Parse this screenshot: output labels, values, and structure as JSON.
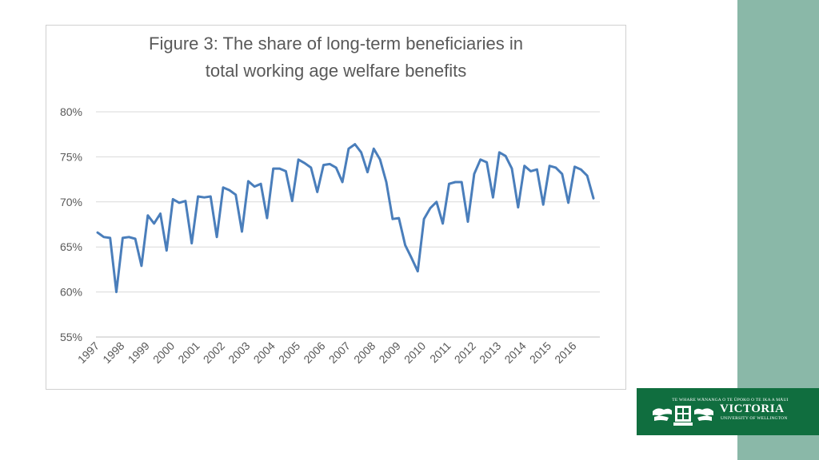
{
  "chart_data": {
    "type": "line",
    "title_lines": [
      "Figure 3: The share of long-term beneficiaries in",
      "total working age welfare benefits"
    ],
    "xlabel": "",
    "ylabel": "",
    "ylim": [
      55,
      80
    ],
    "yticks": [
      55,
      60,
      65,
      70,
      75,
      80
    ],
    "ytick_labels": [
      "55%",
      "60%",
      "65%",
      "70%",
      "75%",
      "80%"
    ],
    "xticks": [
      "1997",
      "1998",
      "1999",
      "2000",
      "2001",
      "2002",
      "2003",
      "2004",
      "2005",
      "2006",
      "2007",
      "2008",
      "2009",
      "2010",
      "2011",
      "2012",
      "2013",
      "2014",
      "2015",
      "2016"
    ],
    "x_unit": "quarter",
    "grid": true,
    "legend": "none",
    "series": [
      {
        "color": "#4a7ebb",
        "values": [
          66.6,
          66.1,
          66.0,
          60.0,
          66.0,
          66.1,
          65.9,
          62.9,
          68.5,
          67.6,
          68.7,
          64.6,
          70.3,
          69.9,
          70.1,
          65.4,
          70.6,
          70.5,
          70.6,
          66.1,
          71.6,
          71.3,
          70.8,
          66.7,
          72.3,
          71.7,
          72.0,
          68.2,
          73.7,
          73.7,
          73.4,
          70.1,
          74.7,
          74.3,
          73.8,
          71.1,
          74.1,
          74.2,
          73.8,
          72.2,
          75.9,
          76.4,
          75.5,
          73.3,
          75.9,
          74.7,
          72.2,
          68.1,
          68.2,
          65.2,
          63.8,
          62.3,
          68.1,
          69.3,
          70.0,
          67.6,
          72.0,
          72.2,
          72.2,
          67.8,
          73.1,
          74.7,
          74.4,
          70.5,
          75.5,
          75.1,
          73.7,
          69.4,
          74.0,
          73.4,
          73.6,
          69.7,
          74.0,
          73.8,
          73.1,
          69.9,
          73.9,
          73.6,
          72.9,
          70.4
        ]
      }
    ]
  },
  "logo": {
    "motto": "TE WHARE WĀNANGA O TE ŪPOKO O TE IKA A MĀUI",
    "name": "VICTORIA",
    "subtitle": "UNIVERSITY OF WELLINGTON"
  }
}
